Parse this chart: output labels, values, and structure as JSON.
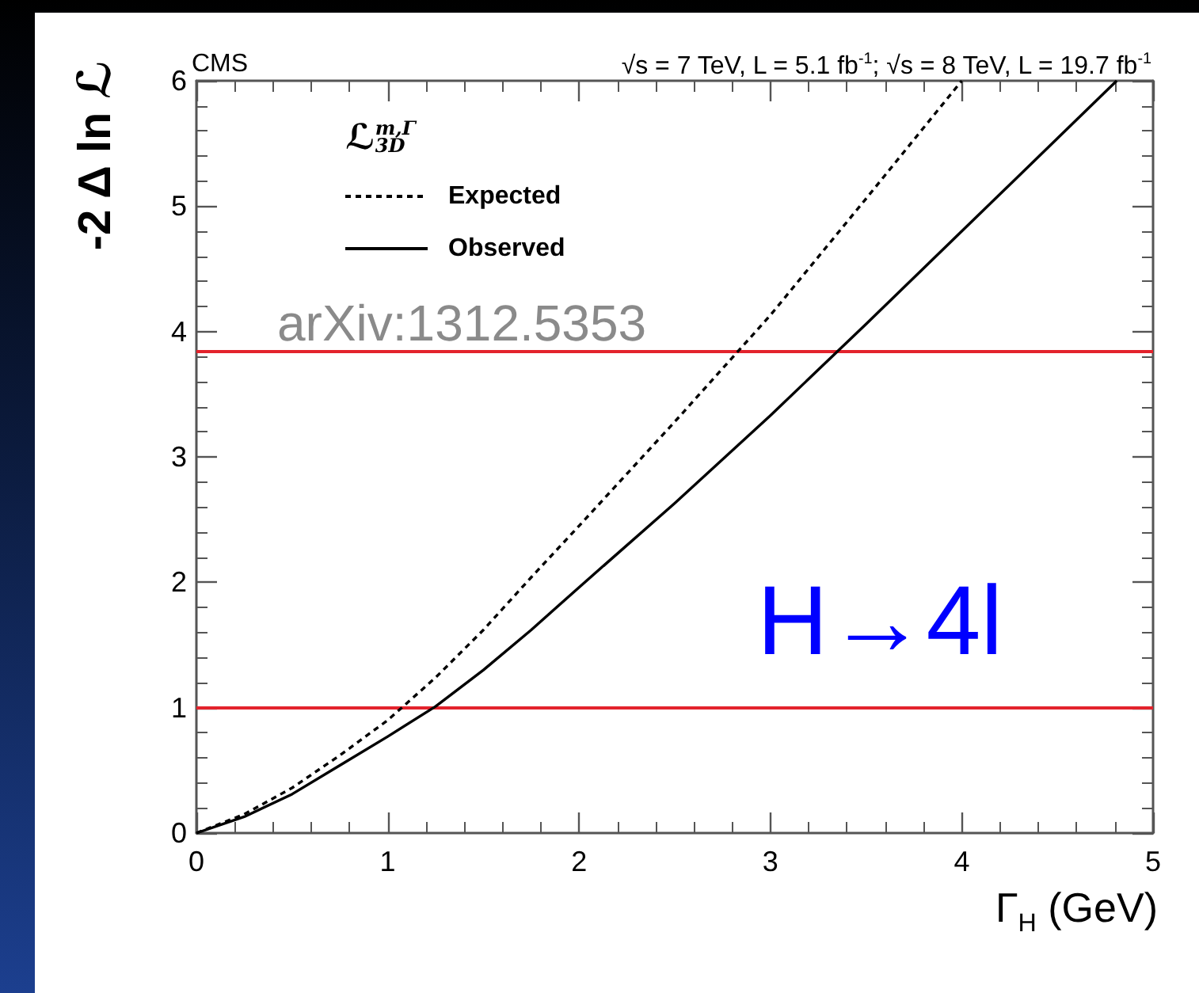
{
  "chart_data": {
    "type": "line",
    "title": "CMS",
    "subtitle": "√s = 7 TeV, L = 5.1 fb$^{-1}$; √s = 8 TeV, L = 19.7 fb$^{-1}$",
    "xlabel": "Γ$_{H}$ (GeV)",
    "ylabel": "-2 Δ ln ℒ",
    "legend_title": "ℒ$^{m,Γ}$$_{3D}$",
    "annotations": [
      "arXiv:1312.5353",
      "H→4l"
    ],
    "series": [
      {
        "name": "Expected",
        "color": "#000000",
        "line_style": "dashed",
        "x": [
          0,
          0.25,
          0.5,
          0.75,
          1,
          1.25,
          1.5,
          1.75,
          2,
          2.5,
          3,
          3.5,
          4
        ],
        "values": [
          0,
          0.15,
          0.36,
          0.62,
          0.9,
          1.24,
          1.62,
          2.04,
          2.45,
          3.28,
          4.13,
          5.06,
          6
        ]
      },
      {
        "name": "Observed",
        "color": "#000000",
        "line_style": "solid",
        "x": [
          0,
          0.25,
          0.5,
          0.75,
          1,
          1.25,
          1.5,
          1.75,
          2,
          2.5,
          3,
          3.5,
          4,
          4.5,
          4.81
        ],
        "values": [
          0,
          0.13,
          0.31,
          0.54,
          0.77,
          1.01,
          1.3,
          1.62,
          1.96,
          2.63,
          3.33,
          4.06,
          4.8,
          5.54,
          6
        ]
      }
    ],
    "xlim": [
      0,
      5
    ],
    "ylim": [
      0,
      6
    ],
    "xticks": [
      0,
      1,
      2,
      3,
      4,
      5
    ],
    "yticks": [
      0,
      1,
      2,
      3,
      4,
      5,
      6
    ],
    "ref_lines": [
      {
        "axis": "y",
        "value": 1,
        "color": "#e3232c"
      },
      {
        "axis": "y",
        "value": 3.84,
        "color": "#e3232c"
      }
    ],
    "legend": "top left",
    "marker": "none"
  }
}
